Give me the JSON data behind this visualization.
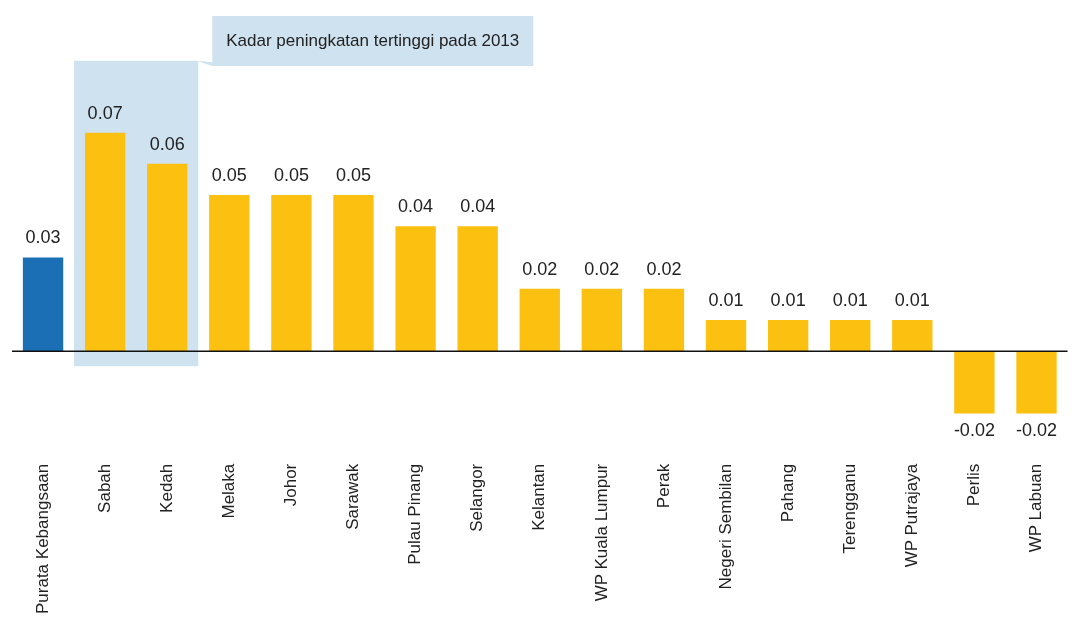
{
  "chart_data": {
    "type": "bar",
    "categories": [
      "Purata Kebangsaan",
      "Sabah",
      "Kedah",
      "Melaka",
      "Johor",
      "Sarawak",
      "Pulau Pinang",
      "Selangor",
      "Kelantan",
      "WP Kuala Lumpur",
      "Perak",
      "Negeri Sembilan",
      "Pahang",
      "Terengganu",
      "WP Putrajaya",
      "Perlis",
      "WP Labuan"
    ],
    "values": [
      0.03,
      0.07,
      0.06,
      0.05,
      0.05,
      0.05,
      0.04,
      0.04,
      0.02,
      0.02,
      0.02,
      0.01,
      0.01,
      0.01,
      0.01,
      -0.02,
      -0.02
    ],
    "colors": [
      "#1a6fb5",
      "#fcc010",
      "#fcc010",
      "#fcc010",
      "#fcc010",
      "#fcc010",
      "#fcc010",
      "#fcc010",
      "#fcc010",
      "#fcc010",
      "#fcc010",
      "#fcc010",
      "#fcc010",
      "#fcc010",
      "#fcc010",
      "#fcc010",
      "#fcc010"
    ],
    "data_labels": true,
    "bands": [
      {
        "axis": "x",
        "from": "Sabah",
        "to": "Kedah",
        "label": "Kadar peningkatan tertinggi pada 2013",
        "color": "#cfe2f0"
      }
    ],
    "grid": false,
    "legend": false
  }
}
